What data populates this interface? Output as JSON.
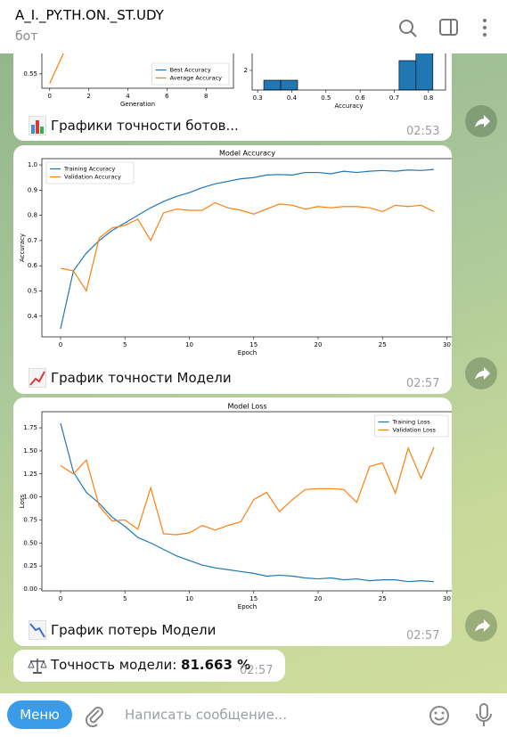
{
  "header": {
    "title": "A_I._PY.TH.ON._ST.UDY",
    "subtitle": "бот"
  },
  "messages": [
    {
      "caption": "Графики точности ботов...",
      "time": "02:53",
      "chart_data": [
        {
          "type": "line",
          "xlabel": "Generation",
          "x": [
            0,
            1,
            2,
            3,
            4,
            5,
            6,
            7,
            8,
            9
          ],
          "series": [
            {
              "name": "Best Accuracy",
              "color": "#1f77b4",
              "values": [
                0.8,
                0.81,
                0.81,
                0.815,
                0.815,
                0.815,
                0.815,
                0.815,
                0.815,
                0.815
              ]
            },
            {
              "name": "Average Accuracy",
              "color": "#ff7f0e",
              "values": [
                0.53,
                0.62,
                0.68,
                0.72,
                0.75,
                0.77,
                0.78,
                0.79,
                0.8,
                0.8
              ]
            }
          ],
          "xlim": [
            -0.4,
            9.4
          ],
          "xticks": [
            0,
            2,
            4,
            6,
            8
          ],
          "ylim": [
            0.52,
            0.84
          ],
          "yticks": [
            0.55
          ],
          "legend": "lower right"
        },
        {
          "type": "histogram",
          "xlabel": "Accuracy",
          "color": "#1f77b4",
          "edgecolor": "#000000",
          "bins": [
            0.318,
            0.3675,
            0.417,
            0.4665,
            0.516,
            0.5655,
            0.615,
            0.6645,
            0.714,
            0.7635,
            0.813
          ],
          "counts": [
            1,
            1,
            0,
            0,
            0,
            0,
            0,
            0,
            3,
            5
          ],
          "xlim": [
            0.284,
            0.85
          ],
          "xticks": [
            0.3,
            0.4,
            0.5,
            0.6,
            0.7,
            0.8
          ],
          "ylim": [
            0,
            5.25
          ],
          "yticks": [
            2
          ]
        }
      ]
    },
    {
      "caption": "График точности Модели",
      "time": "02:57",
      "chart_data": {
        "type": "line",
        "title": "Model Accuracy",
        "xlabel": "Epoch",
        "ylabel": "Accuracy",
        "x": [
          0,
          1,
          2,
          3,
          4,
          5,
          6,
          7,
          8,
          9,
          10,
          11,
          12,
          13,
          14,
          15,
          16,
          17,
          18,
          19,
          20,
          21,
          22,
          23,
          24,
          25,
          26,
          27,
          28,
          29
        ],
        "series": [
          {
            "name": "Training Accuracy",
            "color": "#1f77b4",
            "values": [
              0.35,
              0.58,
              0.65,
              0.7,
              0.74,
              0.77,
              0.8,
              0.83,
              0.855,
              0.875,
              0.89,
              0.91,
              0.925,
              0.935,
              0.945,
              0.95,
              0.96,
              0.962,
              0.96,
              0.97,
              0.97,
              0.965,
              0.975,
              0.97,
              0.975,
              0.978,
              0.975,
              0.98,
              0.978,
              0.982
            ]
          },
          {
            "name": "Validation Accuracy",
            "color": "#ff7f0e",
            "values": [
              0.59,
              0.58,
              0.5,
              0.71,
              0.75,
              0.76,
              0.785,
              0.7,
              0.81,
              0.825,
              0.82,
              0.82,
              0.85,
              0.83,
              0.82,
              0.805,
              0.825,
              0.845,
              0.84,
              0.825,
              0.835,
              0.83,
              0.835,
              0.835,
              0.83,
              0.815,
              0.84,
              0.835,
              0.84,
              0.815
            ]
          }
        ],
        "xlim": [
          -1.45,
          30.45
        ],
        "xticks": [
          0,
          5,
          10,
          15,
          20,
          25,
          30
        ],
        "ylim": [
          0.318,
          1.025
        ],
        "yticks": [
          0.4,
          0.5,
          0.6,
          0.7,
          0.8,
          0.9,
          {
            "value": 1,
            "label": "1.0"
          }
        ],
        "legend": "upper left"
      }
    },
    {
      "caption": "График потерь Модели",
      "time": "02:57",
      "chart_data": {
        "type": "line",
        "title": "Model Loss",
        "xlabel": "Epoch",
        "ylabel": "Loss",
        "x": [
          0,
          1,
          2,
          3,
          4,
          5,
          6,
          7,
          8,
          9,
          10,
          11,
          12,
          13,
          14,
          15,
          16,
          17,
          18,
          19,
          20,
          21,
          22,
          23,
          24,
          25,
          26,
          27,
          28,
          29
        ],
        "series": [
          {
            "name": "Training Loss",
            "color": "#1f77b4",
            "values": [
              1.8,
              1.27,
              1.05,
              0.93,
              0.78,
              0.68,
              0.56,
              0.5,
              0.43,
              0.36,
              0.31,
              0.26,
              0.23,
              0.21,
              0.19,
              0.17,
              0.14,
              0.15,
              0.14,
              0.12,
              0.11,
              0.12,
              0.1,
              0.11,
              0.09,
              0.1,
              0.1,
              0.08,
              0.09,
              0.08
            ]
          },
          {
            "name": "Validation Loss",
            "color": "#ff7f0e",
            "values": [
              1.34,
              1.25,
              1.4,
              0.9,
              0.74,
              0.75,
              0.65,
              1.1,
              0.6,
              0.59,
              0.61,
              0.69,
              0.64,
              0.69,
              0.73,
              0.97,
              1.05,
              0.84,
              0.97,
              1.08,
              1.09,
              1.09,
              1.08,
              0.94,
              1.33,
              1.37,
              1.04,
              1.53,
              1.2,
              1.54
            ]
          }
        ],
        "xlim": [
          -1.45,
          30.45
        ],
        "xticks": [
          0,
          5,
          10,
          15,
          20,
          25,
          30
        ],
        "ylim": [
          -0.02,
          1.925
        ],
        "yticks": [
          {
            "value": 0,
            "label": "0.00"
          },
          {
            "value": 0.25,
            "label": "0.25"
          },
          {
            "value": 0.5,
            "label": "0.50"
          },
          {
            "value": 0.75,
            "label": "0.75"
          },
          {
            "value": 1,
            "label": "1.00"
          },
          {
            "value": 1.25,
            "label": "1.25"
          },
          {
            "value": 1.5,
            "label": "1.50"
          },
          {
            "value": 1.75,
            "label": "1.75"
          }
        ],
        "legend": "upper right"
      }
    },
    {
      "caption": "Точность модели: ",
      "caption_value": "81.663 %",
      "time": "02:57"
    }
  ],
  "input": {
    "menu": "Меню",
    "placeholder": "Написать сообщение..."
  }
}
